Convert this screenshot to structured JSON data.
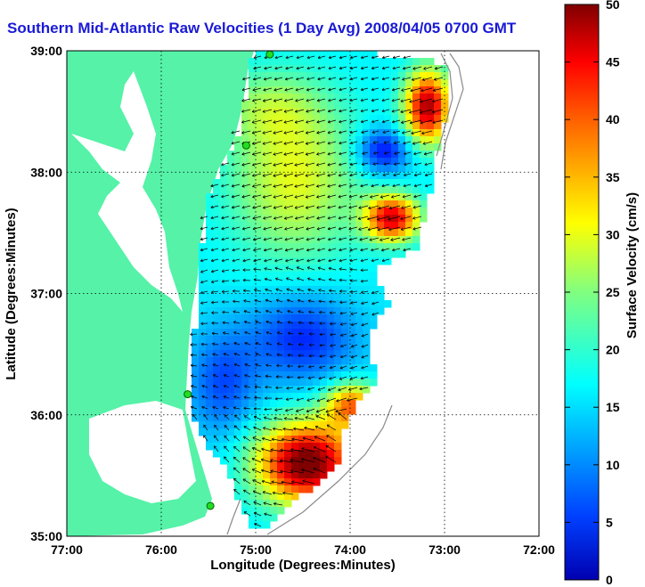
{
  "title": "Southern Mid-Atlantic Raw Velocities (1 Day Avg) 2008/04/05 0700 GMT",
  "map": {
    "xlabel": "Longitude (Degrees:Minutes)",
    "ylabel": "Latitude (Degrees:Minutes)",
    "x_ticks": [
      "77:00",
      "76:00",
      "75:00",
      "74:00",
      "73:00",
      "72:00"
    ],
    "y_ticks": [
      "39:00",
      "38:00",
      "37:00",
      "36:00",
      "35:00"
    ],
    "xlim": [
      -77,
      -72
    ],
    "ylim": [
      35,
      39
    ],
    "grid": "dotted",
    "land_color": "#55f2a8",
    "ocean_color": "#ffffff"
  },
  "colorbar": {
    "label": "Surface Velocity (cm/s)",
    "ticks": [
      "50",
      "45",
      "40",
      "35",
      "30",
      "25",
      "20",
      "15",
      "10",
      "5",
      "0"
    ],
    "range": [
      0,
      50
    ],
    "colormap": "jet"
  },
  "stations": [
    {
      "lon": -74.85,
      "lat": 38.97
    },
    {
      "lon": -75.1,
      "lat": 38.22
    },
    {
      "lon": -75.72,
      "lat": 36.17
    },
    {
      "lon": -75.48,
      "lat": 35.25
    }
  ]
}
